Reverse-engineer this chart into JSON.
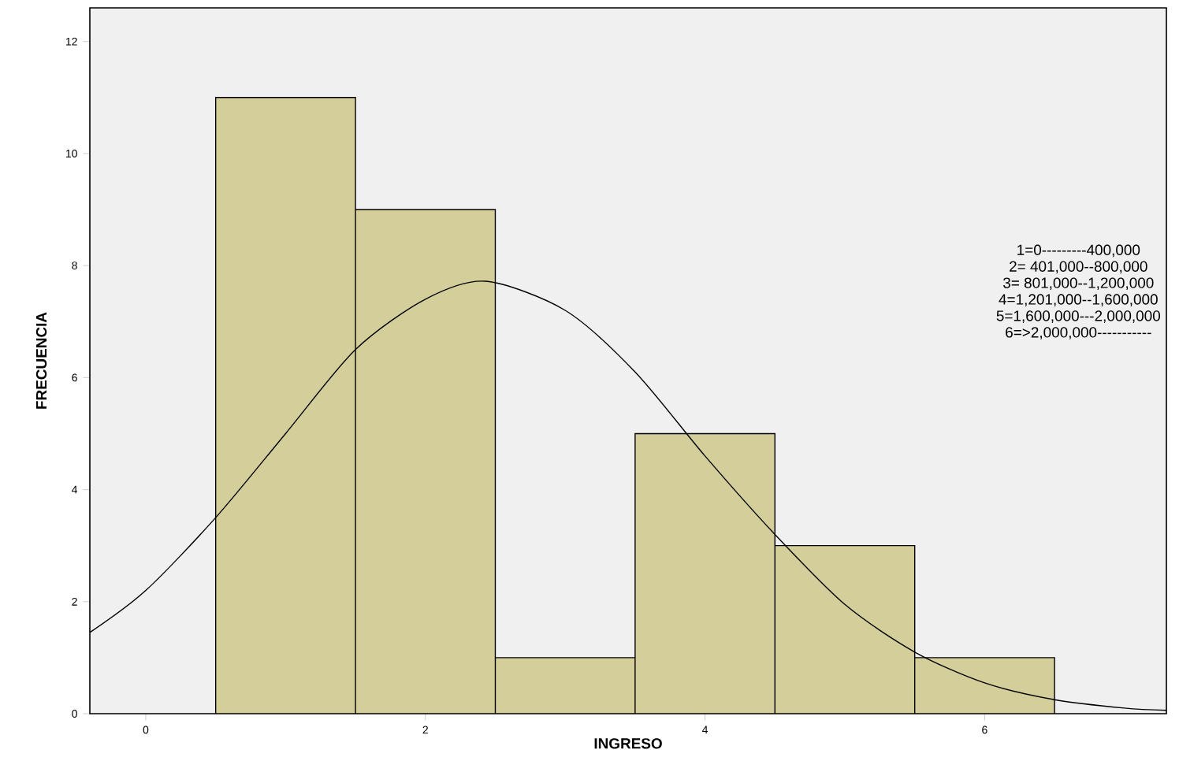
{
  "chart_data": {
    "type": "histogram",
    "xlabel": "INGRESO",
    "ylabel": "FRECUENCIA",
    "bins": [
      0.5,
      1.5,
      2.5,
      3.5,
      4.5,
      5.5,
      6.5
    ],
    "values": [
      11,
      9,
      1,
      5,
      3,
      1
    ],
    "color": "#d3ce9a",
    "series": [
      {
        "type": "line",
        "color": "#000000",
        "x": [
          -0.4,
          0,
          0.5,
          1,
          1.5,
          2,
          2.43,
          3,
          3.5,
          4,
          4.5,
          5,
          5.5,
          6,
          6.5,
          7,
          7.3
        ],
        "values": [
          1.45,
          2.2,
          3.5,
          5.0,
          6.5,
          7.4,
          7.72,
          7.2,
          6.1,
          4.6,
          3.2,
          1.95,
          1.1,
          0.55,
          0.25,
          0.1,
          0.06
        ]
      }
    ],
    "xlim": [
      -0.4,
      7.3
    ],
    "ylim": [
      0,
      12.6
    ],
    "xticks": [
      0,
      2,
      4,
      6
    ],
    "yticks": [
      0,
      2,
      4,
      6,
      8,
      10,
      12
    ],
    "annotations": [
      "1=0---------400,000",
      "2= 401,000--800,000",
      "3= 801,000--1,200,000",
      "4=1,201,000--1,600,000",
      "5=1,600,000---2,000,000",
      "6=>2,000,000-----------"
    ]
  }
}
